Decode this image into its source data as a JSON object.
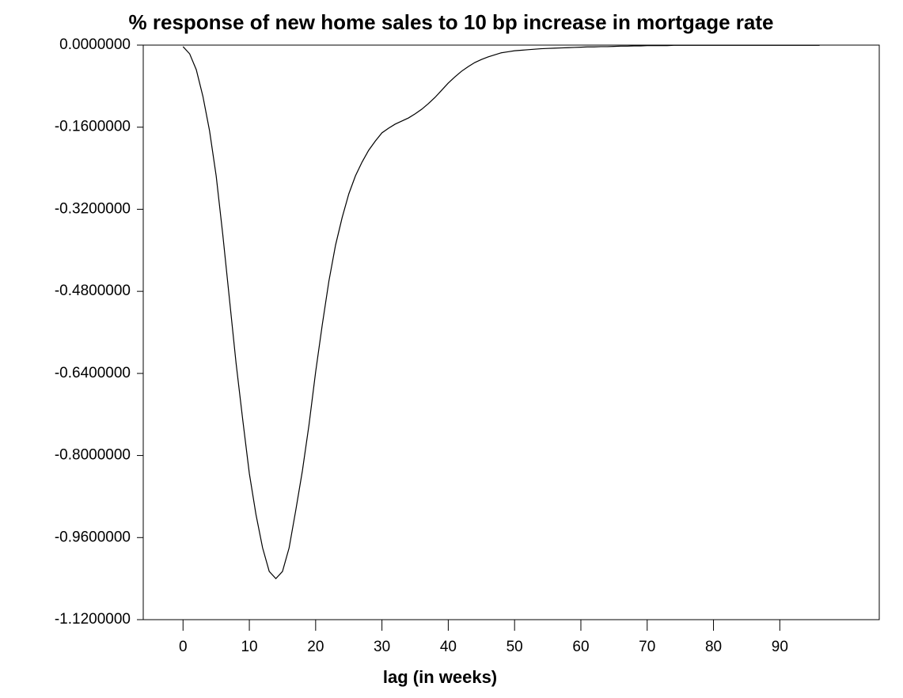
{
  "chart_data": {
    "type": "line",
    "title": "% response of new home sales to 10 bp increase in mortgage rate",
    "x_label": "lag (in weeks)",
    "x": [
      0,
      1,
      2,
      3,
      4,
      5,
      6,
      7,
      8,
      9,
      10,
      11,
      12,
      13,
      14,
      15,
      16,
      17,
      18,
      19,
      20,
      21,
      22,
      23,
      24,
      25,
      26,
      27,
      28,
      29,
      30,
      31,
      32,
      33,
      34,
      35,
      36,
      37,
      38,
      39,
      40,
      41,
      42,
      43,
      44,
      45,
      46,
      47,
      48,
      49,
      50,
      51,
      52,
      53,
      54,
      55,
      56,
      57,
      58,
      59,
      60,
      61,
      62,
      63,
      64,
      65,
      66,
      67,
      68,
      69,
      70,
      71,
      72,
      73,
      74,
      75,
      76,
      77,
      78,
      79,
      80,
      81,
      82,
      83,
      84,
      85,
      86,
      87,
      88,
      89,
      90,
      91,
      92,
      93,
      94,
      95,
      96
    ],
    "series": [
      {
        "color": "#000000",
        "values": [
          -0.003,
          -0.017,
          -0.048,
          -0.1,
          -0.167,
          -0.255,
          -0.37,
          -0.495,
          -0.62,
          -0.73,
          -0.835,
          -0.915,
          -0.98,
          -1.026,
          -1.04,
          -1.026,
          -0.98,
          -0.907,
          -0.83,
          -0.74,
          -0.637,
          -0.545,
          -0.46,
          -0.39,
          -0.336,
          -0.29,
          -0.255,
          -0.228,
          -0.205,
          -0.187,
          -0.171,
          -0.162,
          -0.154,
          -0.148,
          -0.142,
          -0.134,
          -0.125,
          -0.114,
          -0.102,
          -0.088,
          -0.074,
          -0.062,
          -0.051,
          -0.042,
          -0.034,
          -0.028,
          -0.023,
          -0.019,
          -0.015,
          -0.013,
          -0.011,
          -0.01,
          -0.009,
          -0.008,
          -0.007,
          -0.0065,
          -0.006,
          -0.0055,
          -0.005,
          -0.0045,
          -0.004,
          -0.0035,
          -0.0035,
          -0.003,
          -0.003,
          -0.0025,
          -0.002,
          -0.002,
          -0.0015,
          -0.0015,
          -0.001,
          -0.001,
          -0.001,
          -0.001,
          -0.0005,
          -0.0005,
          -0.0005,
          -0.0005,
          -0.0005,
          -0.0005,
          -0.0005,
          -0.0005,
          -0.0005,
          -0.0005,
          -0.0005,
          -0.0005,
          -0.0005,
          -0.0005,
          -0.0005,
          -0.0005,
          -0.0005,
          -0.0005,
          -0.0005,
          -0.0005,
          -0.0005,
          -0.0005,
          -0.0005
        ]
      }
    ],
    "xlim": [
      -6,
      105
    ],
    "xticks": [
      0,
      10,
      20,
      30,
      40,
      50,
      60,
      70,
      80,
      90
    ],
    "ylim": [
      -1.12,
      0
    ],
    "yticks": [
      {
        "value": 0,
        "label": "0.0000000"
      },
      {
        "value": -0.16,
        "label": "-0.1600000"
      },
      {
        "value": -0.32,
        "label": "-0.3200000"
      },
      {
        "value": -0.48,
        "label": "-0.4800000"
      },
      {
        "value": -0.64,
        "label": "-0.6400000"
      },
      {
        "value": -0.8,
        "label": "-0.8000000"
      },
      {
        "value": -0.96,
        "label": "-0.9600000"
      },
      {
        "value": -1.12,
        "label": "-1.1200000"
      }
    ],
    "grid": false
  }
}
